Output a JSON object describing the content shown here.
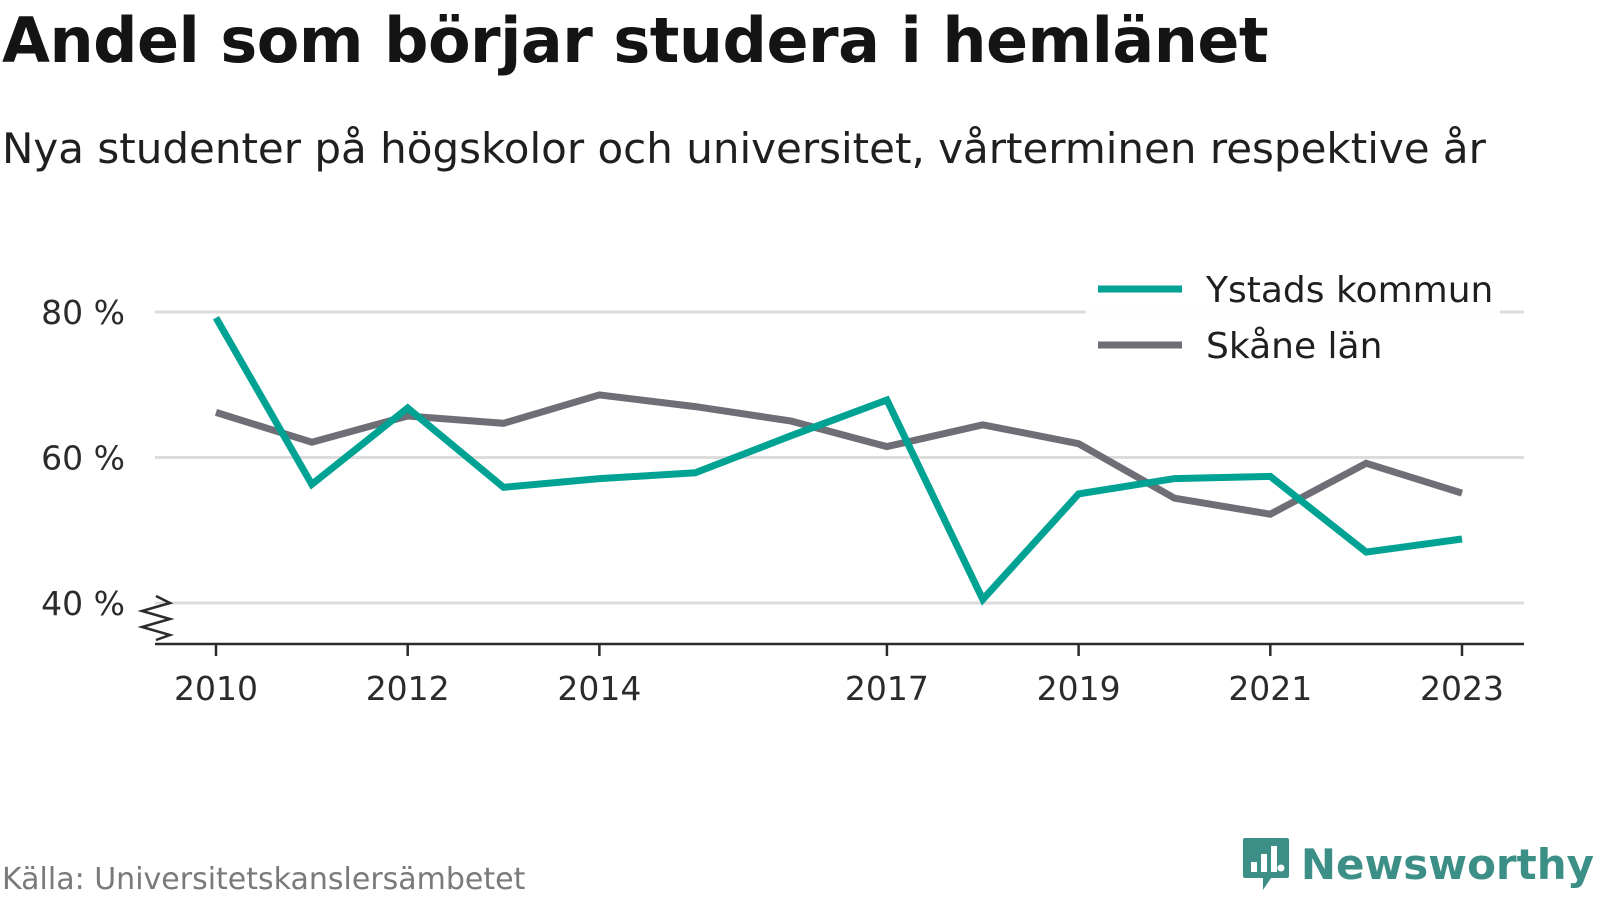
{
  "title": "Andel som börjar studera i hemlänet",
  "subtitle": "Nya studenter på högskolor och universitet, vårterminen respektive år",
  "source": "Källa: Universitetskanslersämbetet",
  "brand": {
    "name": "Newsworthy",
    "color": "#3b8f86"
  },
  "chart_data": {
    "type": "line",
    "x": [
      2010,
      2011,
      2012,
      2013,
      2014,
      2015,
      2016,
      2017,
      2018,
      2019,
      2020,
      2021,
      2022,
      2023
    ],
    "series": [
      {
        "name": "Ystads kommun",
        "color": "#00a393",
        "values": [
          79.2,
          56.3,
          66.8,
          55.9,
          57.1,
          57.9,
          63.0,
          67.9,
          40.5,
          55.0,
          57.1,
          57.4,
          47.0,
          48.8
        ]
      },
      {
        "name": "Skåne län",
        "color": "#6e6e76",
        "values": [
          66.2,
          62.1,
          65.7,
          64.7,
          68.6,
          67.0,
          65.0,
          61.5,
          64.5,
          61.9,
          54.4,
          52.2,
          59.2,
          55.1
        ]
      }
    ],
    "ylim": [
      35,
      85
    ],
    "yticks": [
      40,
      60,
      80
    ],
    "ytick_labels": [
      "40 %",
      "60 %",
      "80 %"
    ],
    "xticks": [
      2010,
      2012,
      2014,
      2017,
      2019,
      2021,
      2023
    ],
    "xtick_labels": [
      "2010",
      "2012",
      "2014",
      "2017",
      "2019",
      "2021",
      "2023"
    ],
    "xlabel": "",
    "ylabel": "",
    "grid": true,
    "legend": "top-right",
    "axis_break": true
  }
}
